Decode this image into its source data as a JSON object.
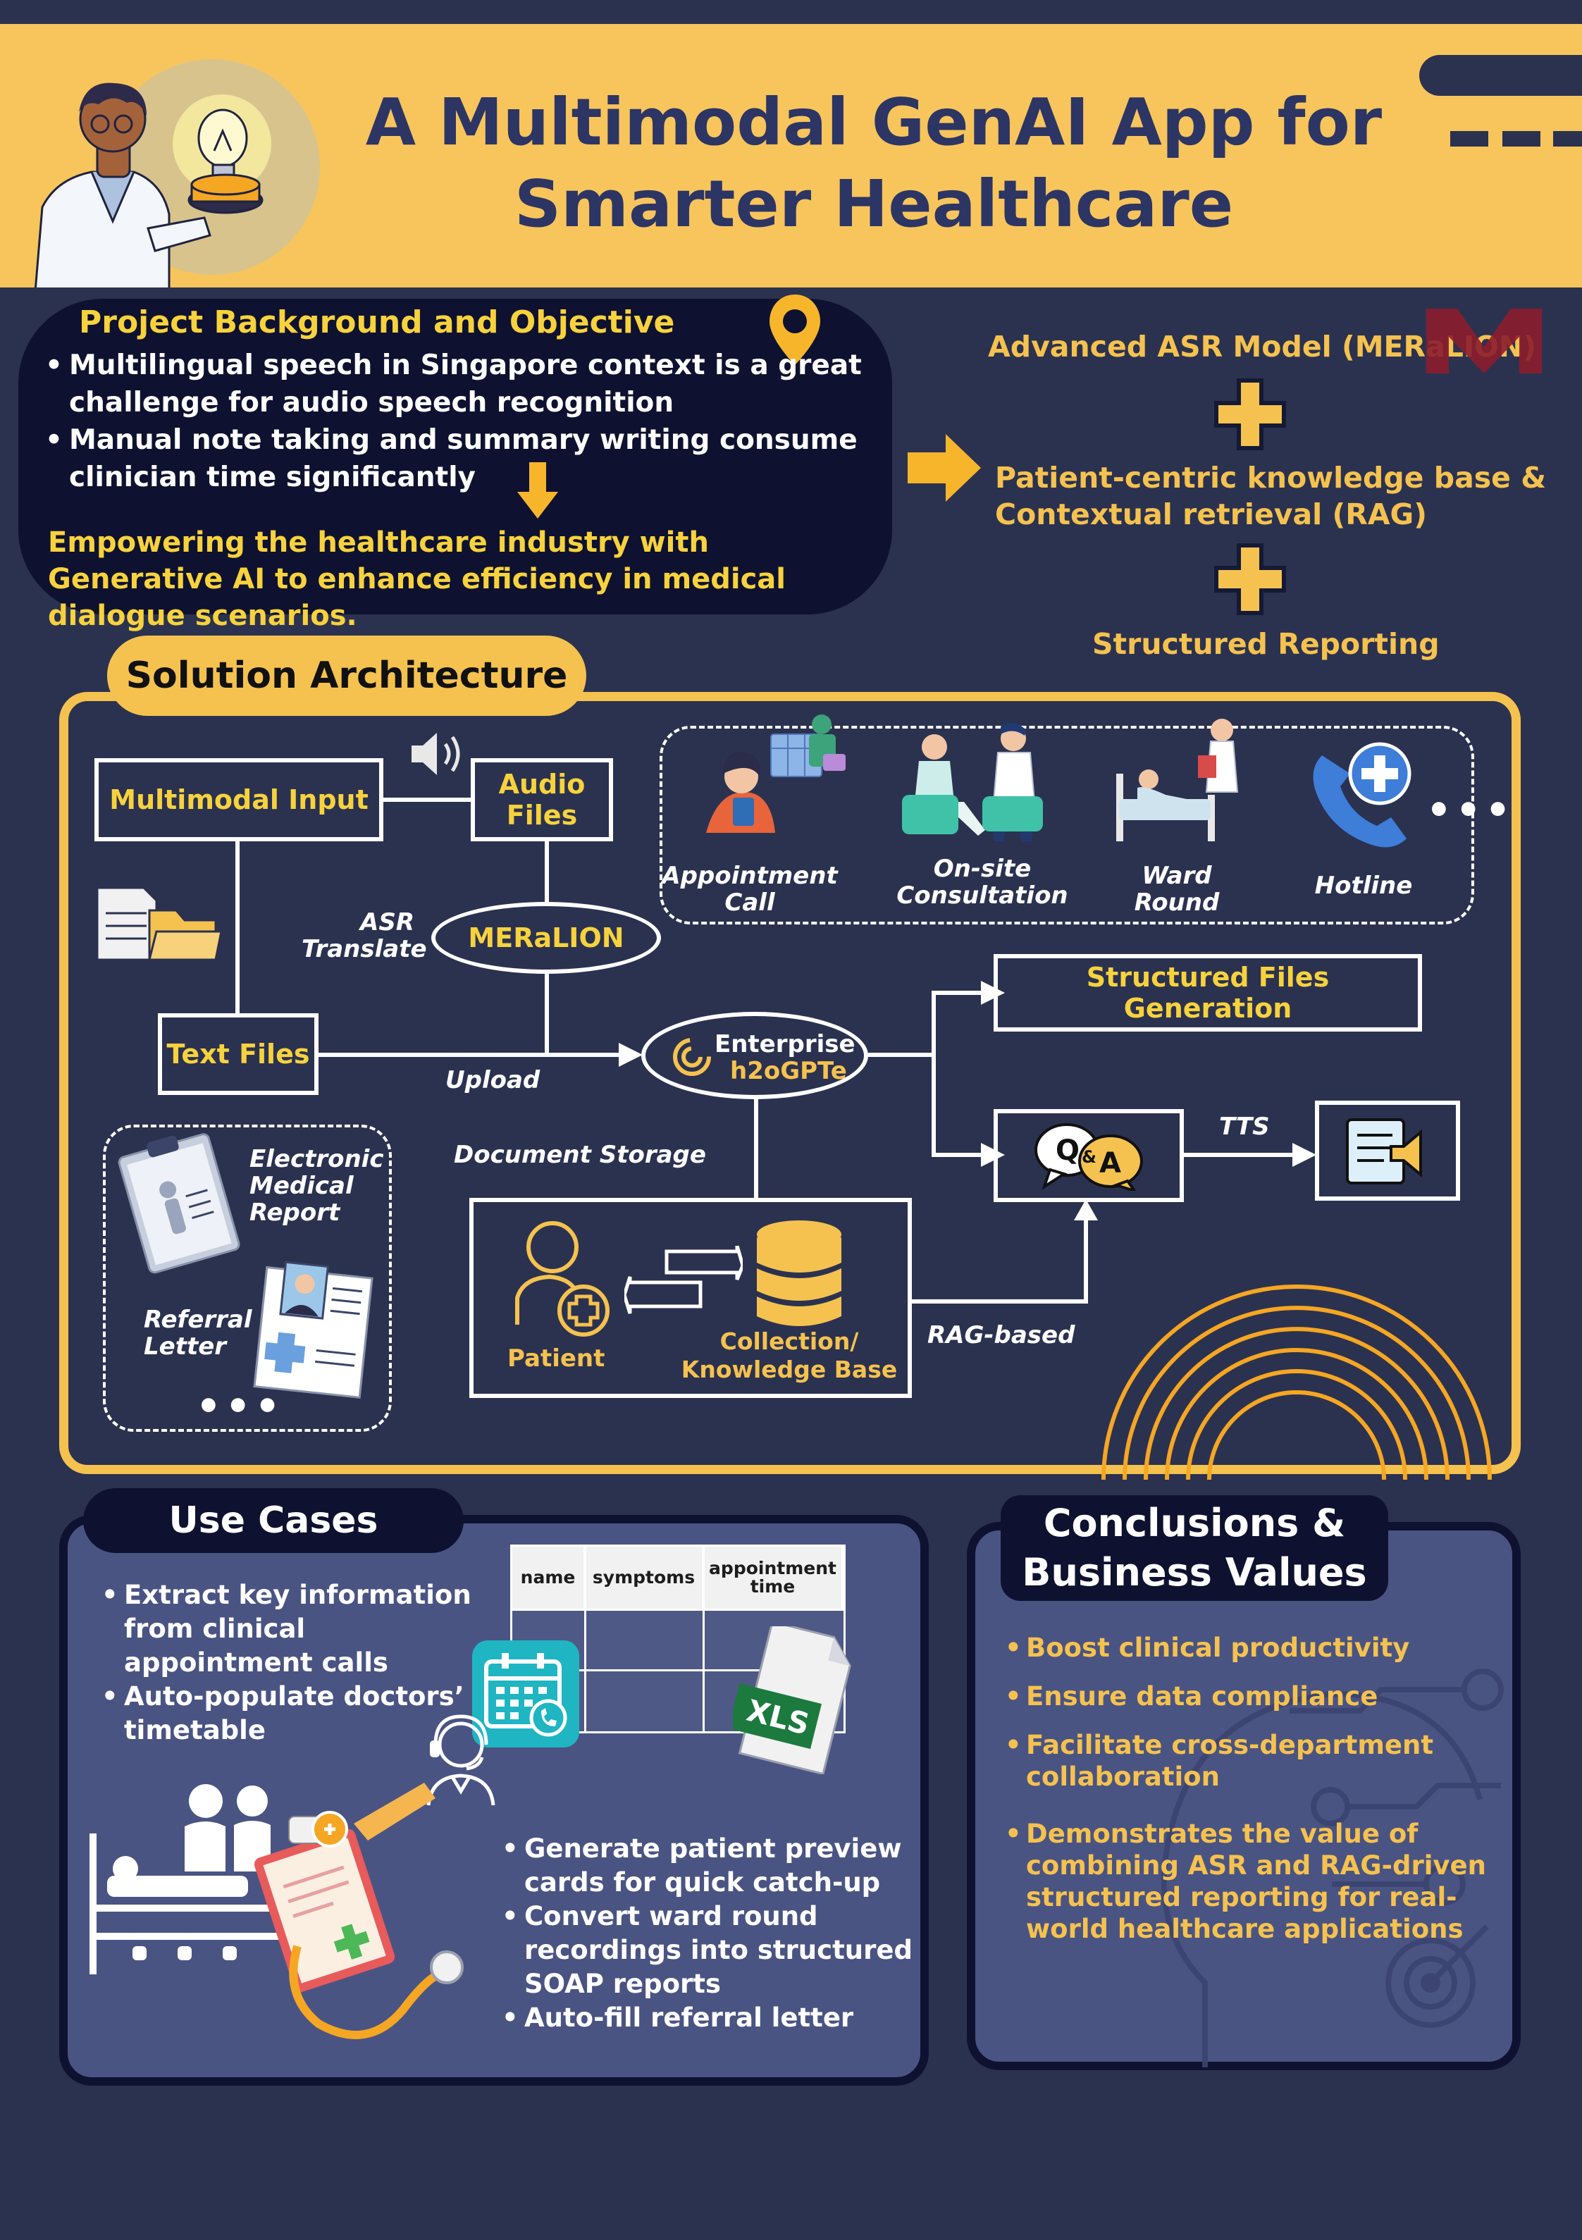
{
  "header": {
    "title_line1": "A Multimodal GenAI App for",
    "title_line2": "Smarter Healthcare"
  },
  "background": {
    "title": "Project Background and Objective",
    "bullets": [
      "Multilingual speech in Singapore context is a great challenge for audio speech recognition",
      "Manual note taking and summary writing consume clinician time significantly"
    ],
    "conclusion": "Empowering the healthcare industry with Generative AI to enhance efficiency in medical dialogue scenarios."
  },
  "stack": {
    "item1": "Advanced ASR Model  (MERaLION)",
    "item2_line1": "Patient-centric knowledge base &",
    "item2_line2": "Contextual retrieval (RAG)",
    "item3": "Structured Reporting",
    "logo_text": "M"
  },
  "architecture": {
    "title": "Solution Architecture",
    "multimodal_input": "Multimodal Input",
    "audio_files_line1": "Audio",
    "audio_files_line2": "Files",
    "meralion": "MERaLION",
    "asr_line1": "ASR",
    "asr_line2": "Translate",
    "text_files": "Text Files",
    "upload": "Upload",
    "enterprise_line1": "Enterprise",
    "enterprise_line2": "h2oGPTe",
    "document_storage": "Document Storage",
    "structured_files": "Structured Files Generation",
    "tts": "TTS",
    "rag_based": "RAG-based",
    "patient": "Patient",
    "collection_line1": "Collection/",
    "collection_line2": "Knowledge Base",
    "qa_q": "Q",
    "qa_a": "A",
    "qa_amp": "&",
    "scenarios": [
      {
        "line1": "Appointment",
        "line2": "Call"
      },
      {
        "line1": "On-site",
        "line2": "Consultation"
      },
      {
        "line1": "Ward",
        "line2": "Round"
      },
      {
        "line1": "Hotline",
        "line2": ""
      }
    ],
    "ellipsis": "•••",
    "doc_emr_line1": "Electronic",
    "doc_emr_line2": "Medical",
    "doc_emr_line3": "Report",
    "doc_ref_line1": "Referral",
    "doc_ref_line2": "Letter"
  },
  "use_cases": {
    "title": "Use Cases",
    "bullets_top": [
      "Extract key information from clinical appointment calls",
      "Auto-populate doctors’ timetable"
    ],
    "bullets_bottom": [
      "Generate patient preview cards for quick catch-up",
      "Convert ward round recordings into structured SOAP reports",
      "Auto-fill referral letter"
    ],
    "table_headers": [
      "name",
      "symptoms",
      "appointment time"
    ],
    "xls_label": "XLS"
  },
  "conclusions": {
    "title_line1": "Conclusions &",
    "title_line2": "Business Values",
    "bullets": [
      "Boost clinical productivity",
      "Ensure data compliance",
      "Facilitate cross-department collaboration",
      "Demonstrates the value of combining ASR and RAG-driven structured reporting for real-world healthcare applications"
    ]
  },
  "colors": {
    "background": "#2B3250",
    "yellow": "#F5C24F",
    "header_yellow": "#F7C55C",
    "dark_navy": "#0E1230",
    "panel": "#4A5483",
    "title_navy": "#2C3564"
  }
}
